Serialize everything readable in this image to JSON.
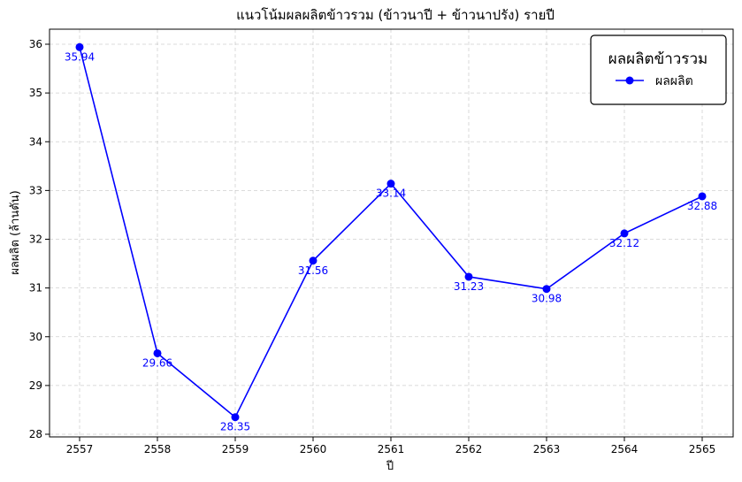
{
  "chart_data": {
    "type": "line",
    "title": "แนวโน้มผลผลิตข้าวรวม (ข้าวนาปี + ข้าวนาปรัง) รายปี",
    "xlabel": "ปี",
    "ylabel": "ผลผลิต (ล้านตัน)",
    "categories": [
      "2557",
      "2558",
      "2559",
      "2560",
      "2561",
      "2562",
      "2563",
      "2564",
      "2565"
    ],
    "series": [
      {
        "name": "ผลผลิต",
        "values": [
          35.94,
          29.66,
          28.35,
          31.56,
          33.14,
          31.23,
          30.98,
          32.12,
          32.88
        ],
        "labels": [
          "35.94",
          "29.66",
          "28.35",
          "31.56",
          "33.14",
          "31.23",
          "30.98",
          "32.12",
          "32.88"
        ],
        "color": "#0000ff"
      }
    ],
    "ylim": [
      28,
      36
    ],
    "yticks": [
      "28",
      "29",
      "30",
      "31",
      "32",
      "33",
      "34",
      "35",
      "36"
    ],
    "grid": true,
    "legend": {
      "title": "ผลผลิตข้าวรวม",
      "placement": "top-right"
    }
  }
}
